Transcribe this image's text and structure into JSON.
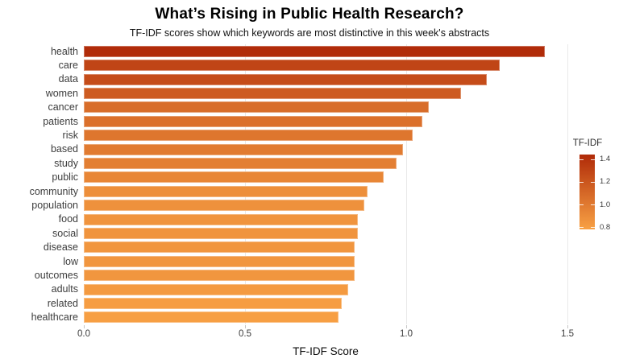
{
  "chart_data": {
    "type": "bar",
    "orientation": "horizontal",
    "title": "What’s Rising in Public Health Research?",
    "subtitle": "TF-IDF scores show which keywords are most distinctive in this week's abstracts",
    "categories": [
      "health",
      "care",
      "data",
      "women",
      "cancer",
      "patients",
      "risk",
      "based",
      "study",
      "public",
      "community",
      "population",
      "food",
      "social",
      "disease",
      "low",
      "outcomes",
      "adults",
      "related",
      "healthcare"
    ],
    "values": [
      1.43,
      1.29,
      1.25,
      1.17,
      1.07,
      1.05,
      1.02,
      0.99,
      0.97,
      0.93,
      0.88,
      0.87,
      0.85,
      0.85,
      0.84,
      0.84,
      0.84,
      0.82,
      0.8,
      0.79
    ],
    "xlabel": "TF-IDF Score",
    "xlim": [
      0,
      1.53
    ],
    "xticks": [
      "0.0",
      "0.5",
      "1.0",
      "1.5"
    ],
    "grid": "vertical-major-only",
    "legend": {
      "title": "TF-IDF",
      "position": "right",
      "ticks": [
        "1.4",
        "1.2",
        "1.0",
        "0.8"
      ]
    },
    "color_scale": {
      "low": "#F8A144",
      "high": "#B02A08",
      "domain": [
        0.78,
        1.44
      ],
      "gridline_color": "#E9E9E9"
    }
  }
}
